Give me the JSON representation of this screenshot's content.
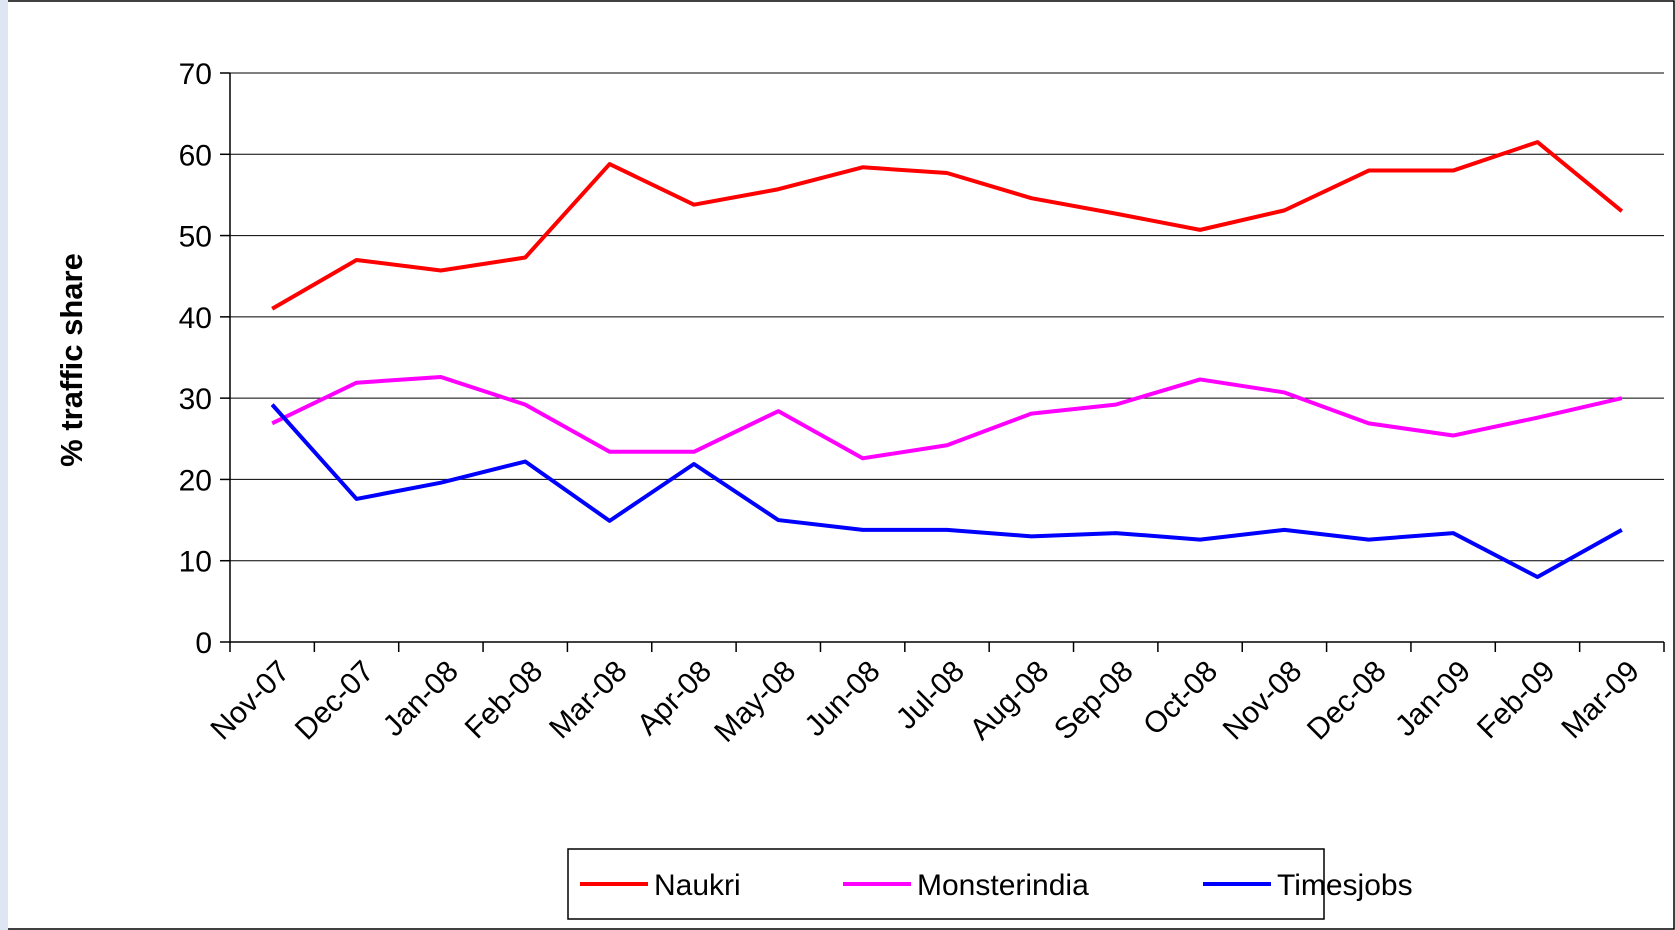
{
  "chart_data": {
    "type": "line",
    "y_label": "% traffic share",
    "categories": [
      "Nov-07",
      "Dec-07",
      "Jan-08",
      "Feb-08",
      "Mar-08",
      "Apr-08",
      "May-08",
      "Jun-08",
      "Jul-08",
      "Aug-08",
      "Sep-08",
      "Oct-08",
      "Nov-08",
      "Dec-08",
      "Jan-09",
      "Feb-09",
      "Mar-09"
    ],
    "series": [
      {
        "name": "Naukri",
        "color": "#ff0000",
        "values": [
          41,
          47,
          45.7,
          47.3,
          58.8,
          53.8,
          55.7,
          58.4,
          57.7,
          54.6,
          52.7,
          50.7,
          53.1,
          58,
          58,
          61.5,
          53
        ]
      },
      {
        "name": "Monsterindia",
        "color": "#ff00ff",
        "values": [
          26.9,
          31.9,
          32.6,
          29.2,
          23.4,
          23.4,
          28.4,
          22.6,
          24.2,
          28.1,
          29.2,
          32.3,
          30.7,
          26.9,
          25.4,
          27.6,
          30
        ]
      },
      {
        "name": "Timesjobs",
        "color": "#0000ff",
        "values": [
          29.2,
          17.6,
          19.6,
          22.2,
          14.9,
          21.9,
          15,
          13.8,
          13.8,
          13,
          13.4,
          12.6,
          13.8,
          12.6,
          13.4,
          8,
          13.8
        ]
      }
    ],
    "ylim": [
      0,
      70
    ],
    "yticks": [
      0,
      10,
      20,
      30,
      40,
      50,
      60,
      70
    ],
    "grid": true,
    "legend": "bottom"
  }
}
